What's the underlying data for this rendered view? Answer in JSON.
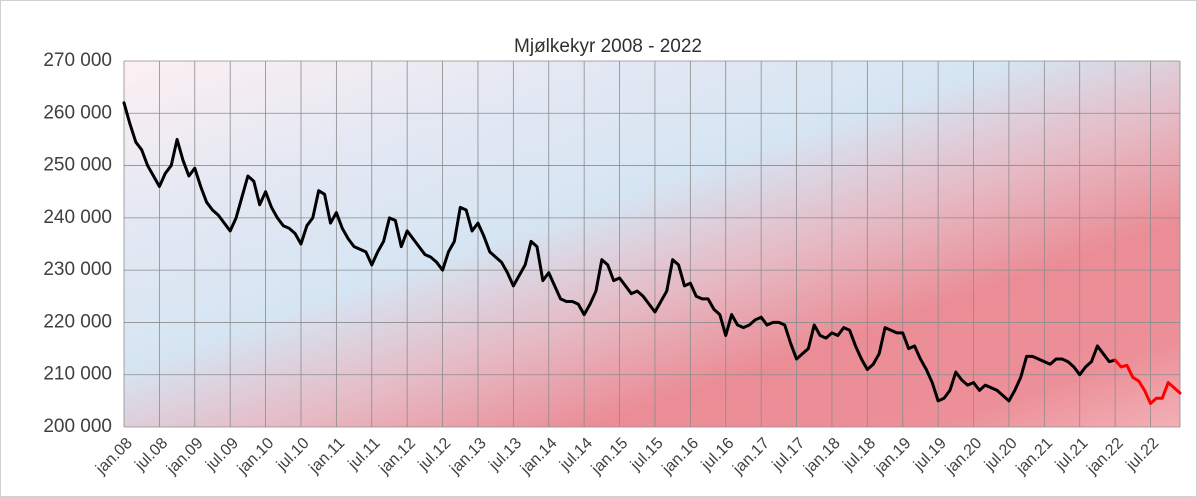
{
  "chart_data": {
    "type": "line",
    "title": "Mjølkekyr 2008 - 2022",
    "categories": [
      "jan.08",
      null,
      null,
      null,
      null,
      null,
      "jul.08",
      null,
      null,
      null,
      null,
      null,
      "jan.09",
      null,
      null,
      null,
      null,
      null,
      "jul.09",
      null,
      null,
      null,
      null,
      null,
      "jan.10",
      null,
      null,
      null,
      null,
      null,
      "jul.10",
      null,
      null,
      null,
      null,
      null,
      "jan.11",
      null,
      null,
      null,
      null,
      null,
      "jul.11",
      null,
      null,
      null,
      null,
      null,
      "jan.12",
      null,
      null,
      null,
      null,
      null,
      "jul.12",
      null,
      null,
      null,
      null,
      null,
      "jan.13",
      null,
      null,
      null,
      null,
      null,
      "jul.13",
      null,
      null,
      null,
      null,
      null,
      "jan.14",
      null,
      null,
      null,
      null,
      null,
      "jul.14",
      null,
      null,
      null,
      null,
      null,
      "jan.15",
      null,
      null,
      null,
      null,
      null,
      "jul.15",
      null,
      null,
      null,
      null,
      null,
      "jan.16",
      null,
      null,
      null,
      null,
      null,
      "jul.16",
      null,
      null,
      null,
      null,
      null,
      "jan.17",
      null,
      null,
      null,
      null,
      null,
      "jul.17",
      null,
      null,
      null,
      null,
      null,
      "jan.18",
      null,
      null,
      null,
      null,
      null,
      "jul.18",
      null,
      null,
      null,
      null,
      null,
      "jan.19",
      null,
      null,
      null,
      null,
      null,
      "jul.19",
      null,
      null,
      null,
      null,
      null,
      "jan.20",
      null,
      null,
      null,
      null,
      null,
      "jul.20",
      null,
      null,
      null,
      null,
      null,
      "jan.21",
      null,
      null,
      null,
      null,
      null,
      "jul.21",
      null,
      null,
      null,
      null,
      null,
      "jan.22",
      null,
      null,
      null,
      null,
      null,
      "jul.22",
      null,
      null,
      null,
      null,
      null
    ],
    "series": [
      {
        "color": "#000000",
        "values": [
          262000,
          258000,
          254500,
          253000,
          250000,
          248000,
          246000,
          248500,
          250000,
          255000,
          251000,
          248000,
          249500,
          246000,
          243000,
          241500,
          240500,
          239000,
          237500,
          240000,
          244000,
          248000,
          247000,
          242500,
          245000,
          242000,
          240000,
          238500,
          238000,
          237000,
          235000,
          238500,
          240000,
          245200,
          244500,
          239000,
          241000,
          238000,
          236000,
          234500,
          234000,
          233500,
          231000,
          233500,
          235500,
          240000,
          239500,
          234500,
          237500,
          236000,
          234500,
          233000,
          232500,
          231500,
          230000,
          233500,
          235500,
          242000,
          241500,
          237500,
          239000,
          236500,
          233500,
          232500,
          231500,
          229500,
          227000,
          229000,
          231000,
          235500,
          234500,
          228000,
          229500,
          227000,
          224500,
          224000,
          224000,
          223500,
          221500,
          223500,
          226000,
          232000,
          231000,
          228000,
          228500,
          227000,
          225500,
          226000,
          225000,
          223500,
          222000,
          224000,
          226000,
          232000,
          231000,
          227000,
          227500,
          225000,
          224500,
          224500,
          222500,
          221500,
          217500,
          221500,
          219500,
          219000,
          219500,
          220500,
          221000,
          219500,
          220000,
          220000,
          219500,
          216000,
          213000,
          214000,
          215000,
          219500,
          217500,
          217000,
          218000,
          217500,
          219000,
          218500,
          215500,
          213000,
          211000,
          212000,
          214000,
          219000,
          218500,
          218000,
          218000,
          215000,
          215500,
          213000,
          211000,
          208500,
          205000,
          205500,
          207000,
          210500,
          209000,
          208000,
          208500,
          207000,
          208000,
          207500,
          207000,
          206000,
          205000,
          207000,
          209500,
          213500,
          213500,
          213000,
          212500,
          212000,
          213000,
          213000,
          212500,
          211500,
          210000,
          211500,
          212500,
          215500,
          214000,
          212500,
          212800,
          null,
          null,
          null,
          null,
          null,
          null,
          null,
          null,
          null,
          null,
          null
        ]
      },
      {
        "color": "#ff0000",
        "values": [
          null,
          null,
          null,
          null,
          null,
          null,
          null,
          null,
          null,
          null,
          null,
          null,
          null,
          null,
          null,
          null,
          null,
          null,
          null,
          null,
          null,
          null,
          null,
          null,
          null,
          null,
          null,
          null,
          null,
          null,
          null,
          null,
          null,
          null,
          null,
          null,
          null,
          null,
          null,
          null,
          null,
          null,
          null,
          null,
          null,
          null,
          null,
          null,
          null,
          null,
          null,
          null,
          null,
          null,
          null,
          null,
          null,
          null,
          null,
          null,
          null,
          null,
          null,
          null,
          null,
          null,
          null,
          null,
          null,
          null,
          null,
          null,
          null,
          null,
          null,
          null,
          null,
          null,
          null,
          null,
          null,
          null,
          null,
          null,
          null,
          null,
          null,
          null,
          null,
          null,
          null,
          null,
          null,
          null,
          null,
          null,
          null,
          null,
          null,
          null,
          null,
          null,
          null,
          null,
          null,
          null,
          null,
          null,
          null,
          null,
          null,
          null,
          null,
          null,
          null,
          null,
          null,
          null,
          null,
          null,
          null,
          null,
          null,
          null,
          null,
          null,
          null,
          null,
          null,
          null,
          null,
          null,
          null,
          null,
          null,
          null,
          null,
          null,
          null,
          null,
          null,
          null,
          null,
          null,
          null,
          null,
          null,
          null,
          null,
          null,
          null,
          null,
          null,
          null,
          null,
          null,
          null,
          null,
          null,
          null,
          null,
          null,
          null,
          null,
          null,
          null,
          null,
          null,
          212800,
          211500,
          211800,
          209500,
          208800,
          207000,
          204500,
          205500,
          205500,
          208500,
          207500,
          206500
        ]
      }
    ],
    "ylim": [
      200000,
      270000
    ],
    "yticks": [
      {
        "value": 200000,
        "label": "200 000"
      },
      {
        "value": 210000,
        "label": "210 000"
      },
      {
        "value": 220000,
        "label": "220 000"
      },
      {
        "value": 230000,
        "label": "230 000"
      },
      {
        "value": 240000,
        "label": "240 000"
      },
      {
        "value": 250000,
        "label": "250 000"
      },
      {
        "value": 260000,
        "label": "260 000"
      },
      {
        "value": 270000,
        "label": "270 000"
      }
    ],
    "grid": true
  }
}
